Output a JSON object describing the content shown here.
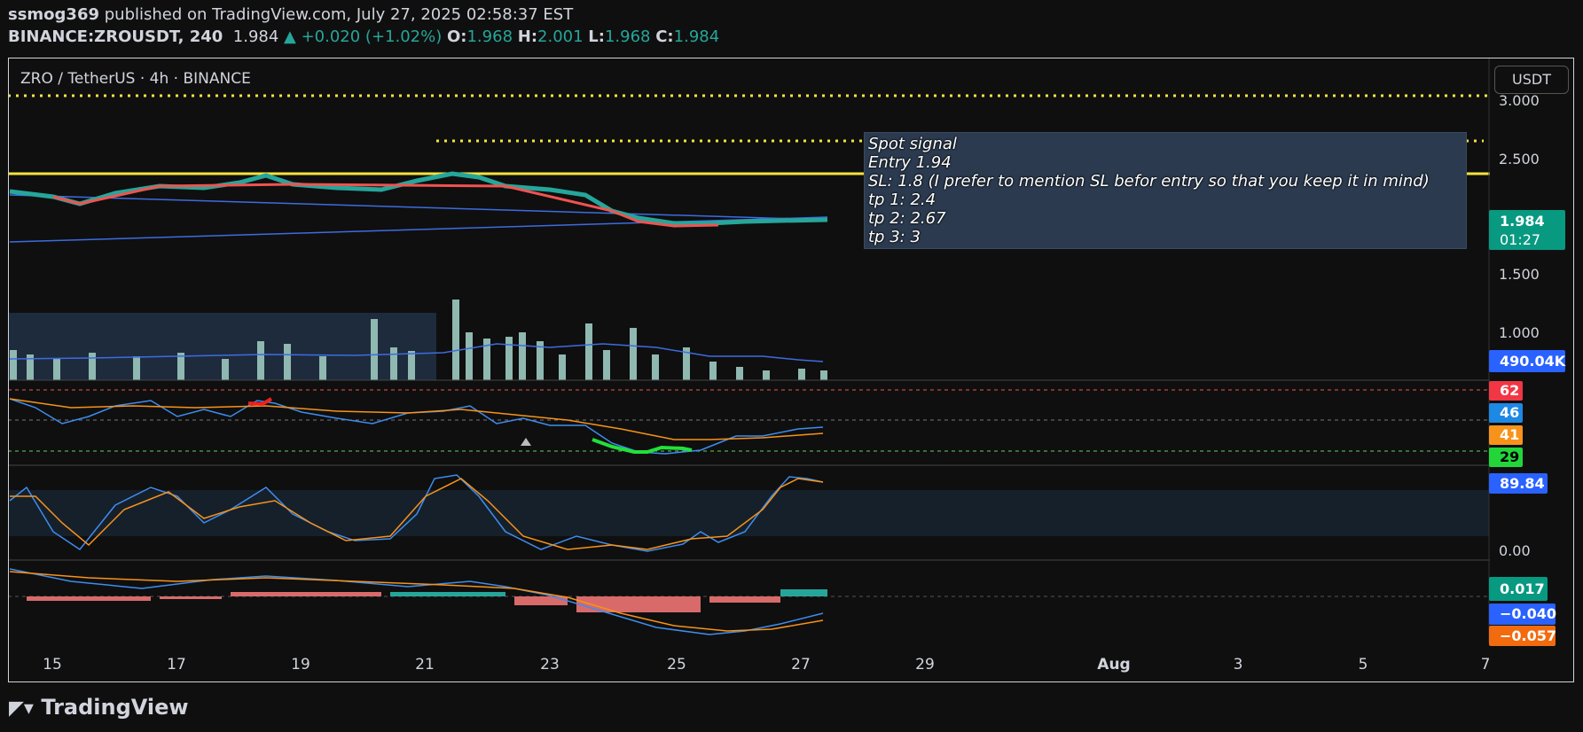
{
  "header": {
    "publisher": "ssmog369",
    "published": "published on TradingView.com, July 27, 2025 02:58:37 EST",
    "symbol": "BINANCE:ZROUSDT, 240",
    "last": "1.984",
    "change": "▲ +0.020 (+1.02%)",
    "ohlc": [
      {
        "label": "O:",
        "value": "1.968"
      },
      {
        "label": "H:",
        "value": "2.001"
      },
      {
        "label": "L:",
        "value": "1.968"
      },
      {
        "label": "C:",
        "value": "1.984"
      }
    ]
  },
  "chart": {
    "title": "ZRO / TetherUS · 4h · BINANCE",
    "currency": "USDT",
    "price_axis": [
      "3.000",
      "2.500",
      "1.500",
      "1.000",
      "0.00"
    ],
    "date_axis": [
      "15",
      "17",
      "19",
      "21",
      "23",
      "25",
      "27",
      "29",
      "Aug",
      "3",
      "5",
      "7"
    ],
    "badges": [
      {
        "text": "1.984",
        "sub": "01:27"
      },
      {
        "text": "490.04K"
      },
      {
        "text": "62"
      },
      {
        "text": "46"
      },
      {
        "text": "41"
      },
      {
        "text": "29"
      },
      {
        "text": "89.84"
      },
      {
        "text": "0.017"
      },
      {
        "text": "−0.040"
      },
      {
        "text": "−0.057"
      }
    ],
    "note": [
      "Spot signal",
      "Entry 1.94",
      "SL: 1.8 (I prefer to mention SL befor entry so that you keep it in mind)",
      "tp 1: 2.4",
      "tp 2: 2.67",
      "tp 3: 3"
    ]
  },
  "footer": "TradingView"
}
